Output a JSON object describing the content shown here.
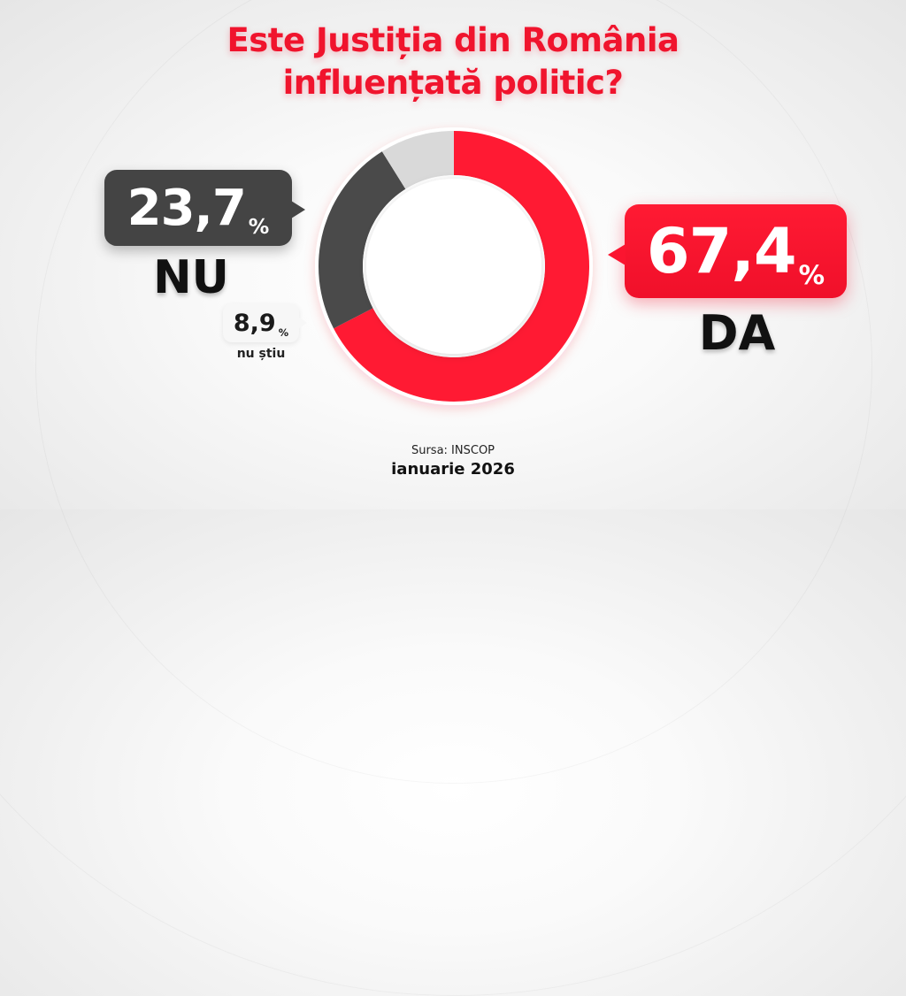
{
  "title": {
    "line1": "Este Justiția din România",
    "line2": "influențată politic?"
  },
  "answers": {
    "da": {
      "value": "67,4",
      "pct": "%",
      "label": "DA",
      "color": "#ff1a33"
    },
    "nu": {
      "value": "23,7",
      "pct": "%",
      "label": "NU",
      "color": "#4a4a4a"
    },
    "nu_stiu": {
      "value": "8,9",
      "pct": "%",
      "label": "nu știu",
      "color": "#d9d9d9"
    }
  },
  "footer": {
    "source": "Sursa: INSCOP",
    "date": "ianuarie 2026"
  },
  "chart_data": {
    "type": "pie",
    "subtype": "donut",
    "title": "Este Justiția din România influențată politic?",
    "categories": [
      "DA",
      "NU",
      "nu știu"
    ],
    "values": [
      67.4,
      23.7,
      8.9
    ],
    "colors": [
      "#ff1a33",
      "#4a4a4a",
      "#d9d9d9"
    ],
    "unit": "%",
    "start_angle": "12 o'clock, clockwise",
    "legend": "callout labels beside chart",
    "source": "Sursa: INSCOP",
    "date": "ianuarie 2026"
  }
}
